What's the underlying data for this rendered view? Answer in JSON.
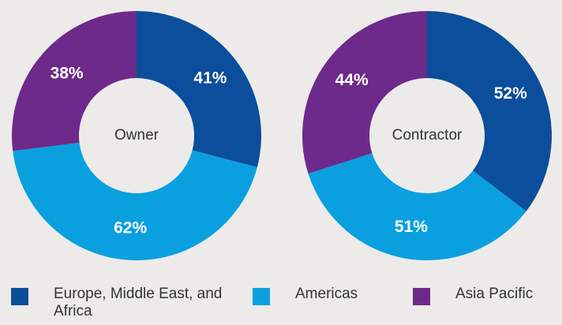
{
  "chart_data": [
    {
      "type": "pie",
      "center_label": "Owner",
      "values": [
        41,
        62,
        38
      ],
      "value_labels": [
        "41%",
        "62%",
        "38%"
      ],
      "colors": [
        "#0b4e9b",
        "#0aa0e0",
        "#6e2a8a"
      ]
    },
    {
      "type": "pie",
      "center_label": "Contractor",
      "values": [
        52,
        51,
        44
      ],
      "value_labels": [
        "52%",
        "51%",
        "44%"
      ],
      "colors": [
        "#0b4e9b",
        "#0aa0e0",
        "#6e2a8a"
      ]
    }
  ],
  "legend": [
    {
      "label": "Europe, Middle East, and Africa",
      "color": "#0b4e9b"
    },
    {
      "label": "Americas",
      "color": "#0aa0e0"
    },
    {
      "label": "Asia Pacific",
      "color": "#6e2a8a"
    }
  ]
}
